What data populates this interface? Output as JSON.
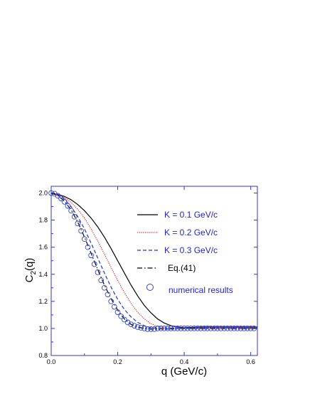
{
  "chart_data": {
    "type": "line",
    "title": "",
    "xlabel": "q (GeV/c)",
    "ylabel_main": "C",
    "ylabel_sub": "2",
    "ylabel_tail": "(q)",
    "xlim": [
      0.0,
      0.62
    ],
    "ylim": [
      0.8,
      2.05
    ],
    "xticks": [
      "0.0",
      "0.2",
      "0.4",
      "0.6"
    ],
    "yticks": [
      "0.8",
      "1.0",
      "1.2",
      "1.4",
      "1.6",
      "1.8",
      "2.0"
    ],
    "legend_position": "top-right",
    "x": [
      0.0,
      0.02,
      0.04,
      0.06,
      0.08,
      0.1,
      0.12,
      0.14,
      0.16,
      0.18,
      0.2,
      0.22,
      0.24,
      0.26,
      0.28,
      0.3,
      0.32,
      0.34,
      0.36,
      0.38,
      0.4,
      0.45,
      0.5,
      0.55,
      0.6,
      0.62
    ],
    "series": [
      {
        "name": "K = 0.1 GeV/c",
        "style": "solid",
        "color": "#000000",
        "values": [
          2.0,
          1.99,
          1.975,
          1.95,
          1.915,
          1.87,
          1.815,
          1.75,
          1.675,
          1.59,
          1.5,
          1.41,
          1.32,
          1.24,
          1.17,
          1.115,
          1.07,
          1.04,
          1.02,
          1.01,
          1.005,
          1.01,
          1.01,
          1.01,
          1.01,
          1.01
        ]
      },
      {
        "name": "K = 0.2 GeV/c",
        "style": "dotted",
        "color": "#dd2222",
        "values": [
          2.0,
          1.99,
          1.965,
          1.93,
          1.88,
          1.815,
          1.735,
          1.645,
          1.55,
          1.45,
          1.355,
          1.265,
          1.185,
          1.12,
          1.07,
          1.035,
          1.015,
          1.005,
          1.0,
          1.0,
          1.0,
          1.005,
          1.005,
          1.005,
          1.005,
          1.005
        ]
      },
      {
        "name": "K = 0.3 GeV/c",
        "style": "dashed",
        "color": "#2233cc",
        "values": [
          2.0,
          1.985,
          1.955,
          1.9,
          1.825,
          1.735,
          1.63,
          1.52,
          1.41,
          1.305,
          1.215,
          1.14,
          1.085,
          1.045,
          1.02,
          1.005,
          1.0,
          0.995,
          0.995,
          1.0,
          1.0,
          1.0,
          1.0,
          1.0,
          1.0,
          1.0
        ]
      },
      {
        "name": "Eq.(41)",
        "style": "dashdot",
        "color": "#000000",
        "values": [
          2.0,
          1.98,
          1.94,
          1.875,
          1.785,
          1.675,
          1.555,
          1.435,
          1.32,
          1.22,
          1.135,
          1.07,
          1.03,
          1.01,
          1.0,
          0.995,
          0.995,
          1.0,
          1.0,
          1.0,
          1.0,
          1.0,
          1.0,
          1.0,
          1.0,
          1.0
        ]
      }
    ],
    "scatter_series": {
      "name": "numerical results",
      "marker": "circle-open",
      "color": "#3344cc",
      "x": [
        0.0,
        0.01,
        0.02,
        0.03,
        0.04,
        0.05,
        0.06,
        0.07,
        0.08,
        0.09,
        0.1,
        0.11,
        0.12,
        0.13,
        0.14,
        0.15,
        0.16,
        0.17,
        0.18,
        0.19,
        0.2,
        0.21,
        0.22,
        0.23,
        0.24,
        0.25,
        0.26,
        0.27,
        0.28,
        0.29,
        0.3,
        0.31,
        0.32,
        0.33,
        0.34,
        0.35,
        0.36,
        0.37,
        0.38,
        0.39,
        0.4,
        0.41,
        0.42,
        0.43,
        0.44,
        0.45,
        0.46,
        0.47,
        0.48,
        0.49,
        0.5,
        0.51,
        0.52,
        0.53,
        0.54,
        0.55,
        0.56,
        0.57,
        0.58,
        0.59,
        0.6,
        0.61
      ],
      "y": [
        2.0,
        1.995,
        1.98,
        1.96,
        1.935,
        1.905,
        1.87,
        1.825,
        1.775,
        1.72,
        1.66,
        1.6,
        1.54,
        1.475,
        1.415,
        1.355,
        1.3,
        1.25,
        1.2,
        1.16,
        1.12,
        1.09,
        1.065,
        1.045,
        1.03,
        1.02,
        1.01,
        1.005,
        1.0,
        0.995,
        0.995,
        0.995,
        1.0,
        1.0,
        1.0,
        1.0,
        1.0,
        1.0,
        1.0,
        1.0,
        1.0,
        1.0,
        1.0,
        1.0,
        1.0,
        1.0,
        1.0,
        1.0,
        1.0,
        1.0,
        1.0,
        1.0,
        1.0,
        1.0,
        1.0,
        1.0,
        1.0,
        1.0,
        1.0,
        1.0,
        1.0,
        1.0
      ]
    },
    "grid": false
  }
}
